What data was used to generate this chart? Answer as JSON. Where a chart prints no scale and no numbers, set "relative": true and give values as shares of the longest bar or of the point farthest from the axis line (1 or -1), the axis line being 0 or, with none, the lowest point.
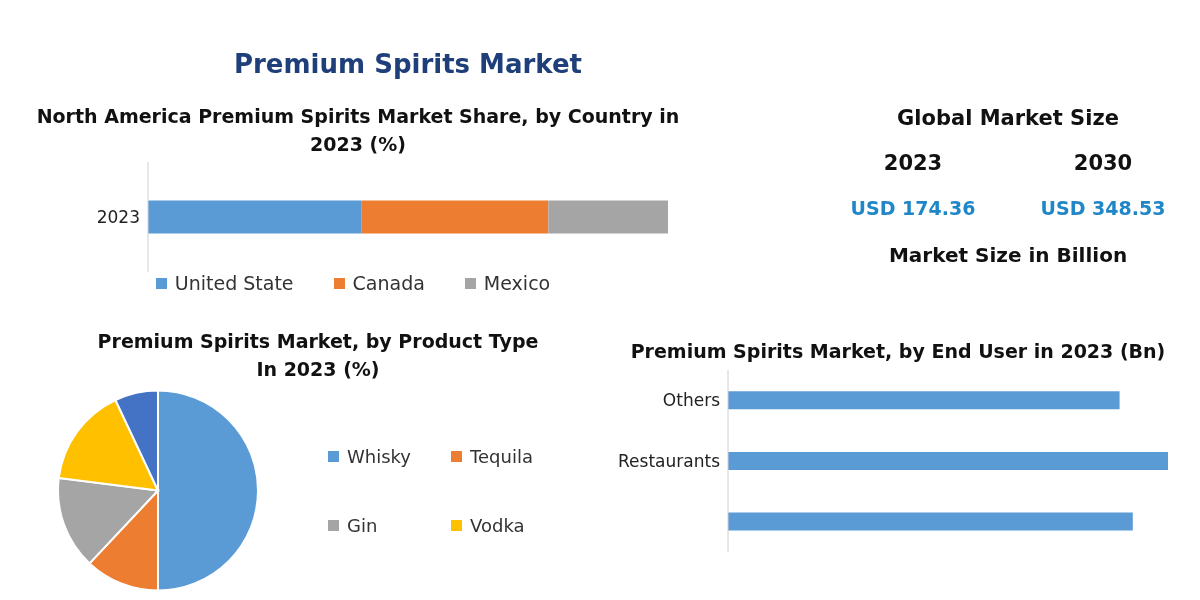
{
  "chart_data": [
    {
      "type": "other",
      "title": "Premium Spirits Market"
    },
    {
      "type": "bar",
      "title": "North America Premium Spirits Market Share, by Country in 2023 (%)",
      "orientation": "horizontal",
      "stacked": true,
      "relative": true,
      "categories": [
        "2023"
      ],
      "legend": "bottom",
      "series": [
        {
          "name": "United State",
          "color": "#5b9bd5",
          "values": [
            0.41
          ]
        },
        {
          "name": "Canada",
          "color": "#ed7d31",
          "values": [
            0.36
          ]
        },
        {
          "name": "Mexico",
          "color": "#a5a5a5",
          "values": [
            0.23
          ]
        }
      ]
    },
    {
      "type": "other",
      "title": "Global Market Size",
      "categories": [
        "2023",
        "2030"
      ],
      "value_labels": [
        "USD 174.36",
        "USD 348.53"
      ],
      "color": "#1f86c8",
      "annotations": [
        "Market Size in Billion"
      ]
    },
    {
      "type": "pie",
      "title": "Premium Spirits Market, by Product Type In 2023 (%)",
      "categories": [
        "Whisky",
        "Tequila",
        "Gin",
        "Vodka",
        null
      ],
      "values": [
        50,
        12,
        15,
        16,
        7
      ],
      "colors": [
        "#5b9bd5",
        "#ed7d31",
        "#a5a5a5",
        "#ffc000",
        "#4472c4"
      ],
      "legend": "right"
    },
    {
      "type": "bar",
      "title": "Premium Spirits Market, by End User in 2023 (Bn)",
      "orientation": "horizontal",
      "relative": true,
      "categories": [
        "Others",
        "Restaurants",
        null
      ],
      "values": [
        0.89,
        1,
        0.92
      ],
      "color": "#5b9bd5"
    }
  ]
}
